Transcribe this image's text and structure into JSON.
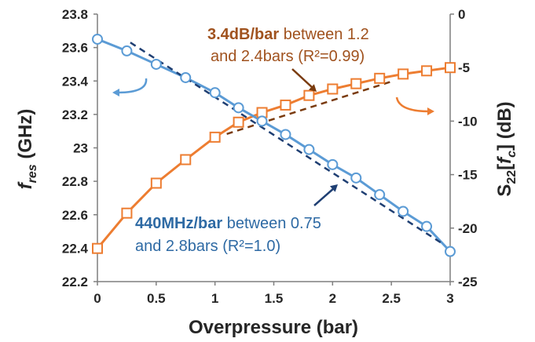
{
  "chart_data": {
    "type": "line",
    "xlabel": "Overpressure (bar)",
    "xlim": [
      0,
      3
    ],
    "x_ticks": [
      "0",
      "0.5",
      "1",
      "1.5",
      "2",
      "2.5",
      "3"
    ],
    "y_left": {
      "label_main": "f",
      "label_sub": "res",
      "label_unit": " (GHz)",
      "lim": [
        22.2,
        23.8
      ],
      "ticks": [
        "22.2",
        "22.4",
        "22.6",
        "22.8",
        "23",
        "23.2",
        "23.4",
        "23.6",
        "23.8"
      ]
    },
    "y_right": {
      "label_main": "S",
      "label_sub": "22",
      "label_bracket_open": "[",
      "label_f": "f",
      "label_fsub": "c",
      "label_bracket_close": "]",
      "label_unit": " (dB)",
      "lim": [
        -25,
        0
      ],
      "ticks": [
        "0",
        "-5",
        "-10",
        "-15",
        "-20",
        "-25"
      ]
    },
    "series": [
      {
        "axis": "left",
        "marker": "circle",
        "color": "#5b9bd5",
        "x": [
          0,
          0.25,
          0.5,
          0.75,
          1.0,
          1.2,
          1.4,
          1.6,
          1.8,
          2.0,
          2.2,
          2.4,
          2.6,
          2.8,
          3.0
        ],
        "values": [
          23.65,
          23.58,
          23.5,
          23.42,
          23.33,
          23.24,
          23.16,
          23.08,
          22.99,
          22.9,
          22.82,
          22.72,
          22.62,
          22.53,
          22.38
        ]
      },
      {
        "axis": "right",
        "marker": "square",
        "color": "#ed7d31",
        "x": [
          0,
          0.25,
          0.5,
          0.75,
          1.0,
          1.2,
          1.4,
          1.6,
          1.8,
          2.0,
          2.2,
          2.4,
          2.6,
          2.8,
          3.0
        ],
        "values": [
          -21.9,
          -18.6,
          -15.8,
          -13.6,
          -11.5,
          -10.1,
          -9.2,
          -8.5,
          -7.6,
          -7.0,
          -6.5,
          -6.0,
          -5.6,
          -5.3,
          -5.0
        ]
      }
    ],
    "fits": [
      {
        "axis": "left",
        "color": "#1f3f73",
        "x": [
          0.28,
          2.95
        ],
        "values": [
          23.63,
          22.42
        ]
      },
      {
        "axis": "right",
        "color": "#7a3b0e",
        "x": [
          1.1,
          2.5
        ],
        "values": [
          -11.2,
          -6.3
        ]
      }
    ],
    "annotations": {
      "orange_bold": "3.4dB/bar",
      "orange_rest": " between 1.2",
      "orange_line2": "and 2.4bars (R²=0.99)",
      "blue_bold": "440MHz/bar",
      "blue_rest": " between 0.75",
      "blue_line2": "and 2.8bars (R²=1.0)",
      "orange_color": "#a0521e",
      "blue_color": "#2e6aa4"
    }
  }
}
